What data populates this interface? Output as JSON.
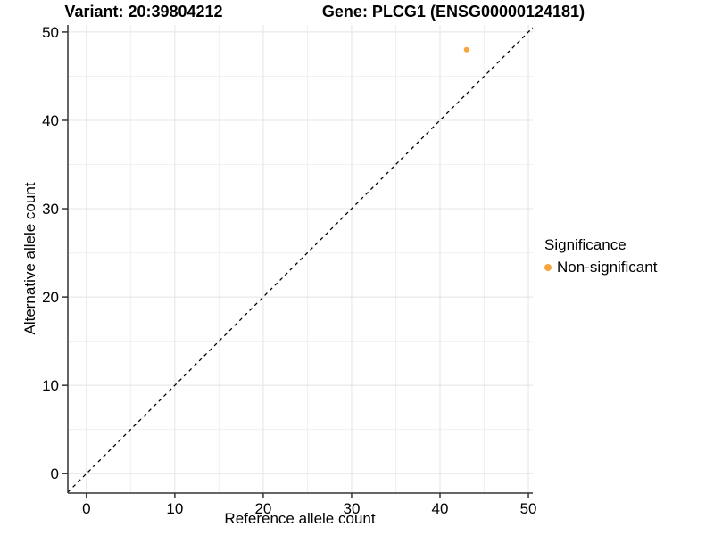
{
  "title": {
    "variant": "Variant: 20:39804212",
    "gene": "Gene: PLCG1 (ENSG00000124181)"
  },
  "axis": {
    "x_label": "Reference allele count",
    "y_label": "Alternative allele count"
  },
  "legend": {
    "title": "Significance",
    "items": [
      {
        "label": "Non-significant",
        "color": "#F8A53F"
      }
    ]
  },
  "chart_data": {
    "type": "scatter",
    "title": "Variant: 20:39804212   Gene: PLCG1 (ENSG00000124181)",
    "xlabel": "Reference allele count",
    "ylabel": "Alternative allele count",
    "xlim": [
      -2.1,
      50.5
    ],
    "ylim": [
      -2.2,
      50.8
    ],
    "x_ticks": [
      0,
      10,
      20,
      30,
      40,
      50
    ],
    "y_ticks": [
      0,
      10,
      20,
      30,
      40,
      50
    ],
    "minor_grid_step": 5,
    "grid": true,
    "legend_position": "right",
    "series": [
      {
        "name": "Non-significant",
        "color": "#F8A53F",
        "points": [
          {
            "x": 43,
            "y": 48
          }
        ]
      }
    ],
    "reference_line": {
      "kind": "identity y=x",
      "style": "dashed",
      "color": "#000000"
    }
  },
  "style_colors": {
    "grid_major": "#e4e4e4",
    "grid_minor": "#f0f0f0",
    "axis_line": "#333333",
    "tick_text": "#000000",
    "point": "#F8A53F"
  }
}
